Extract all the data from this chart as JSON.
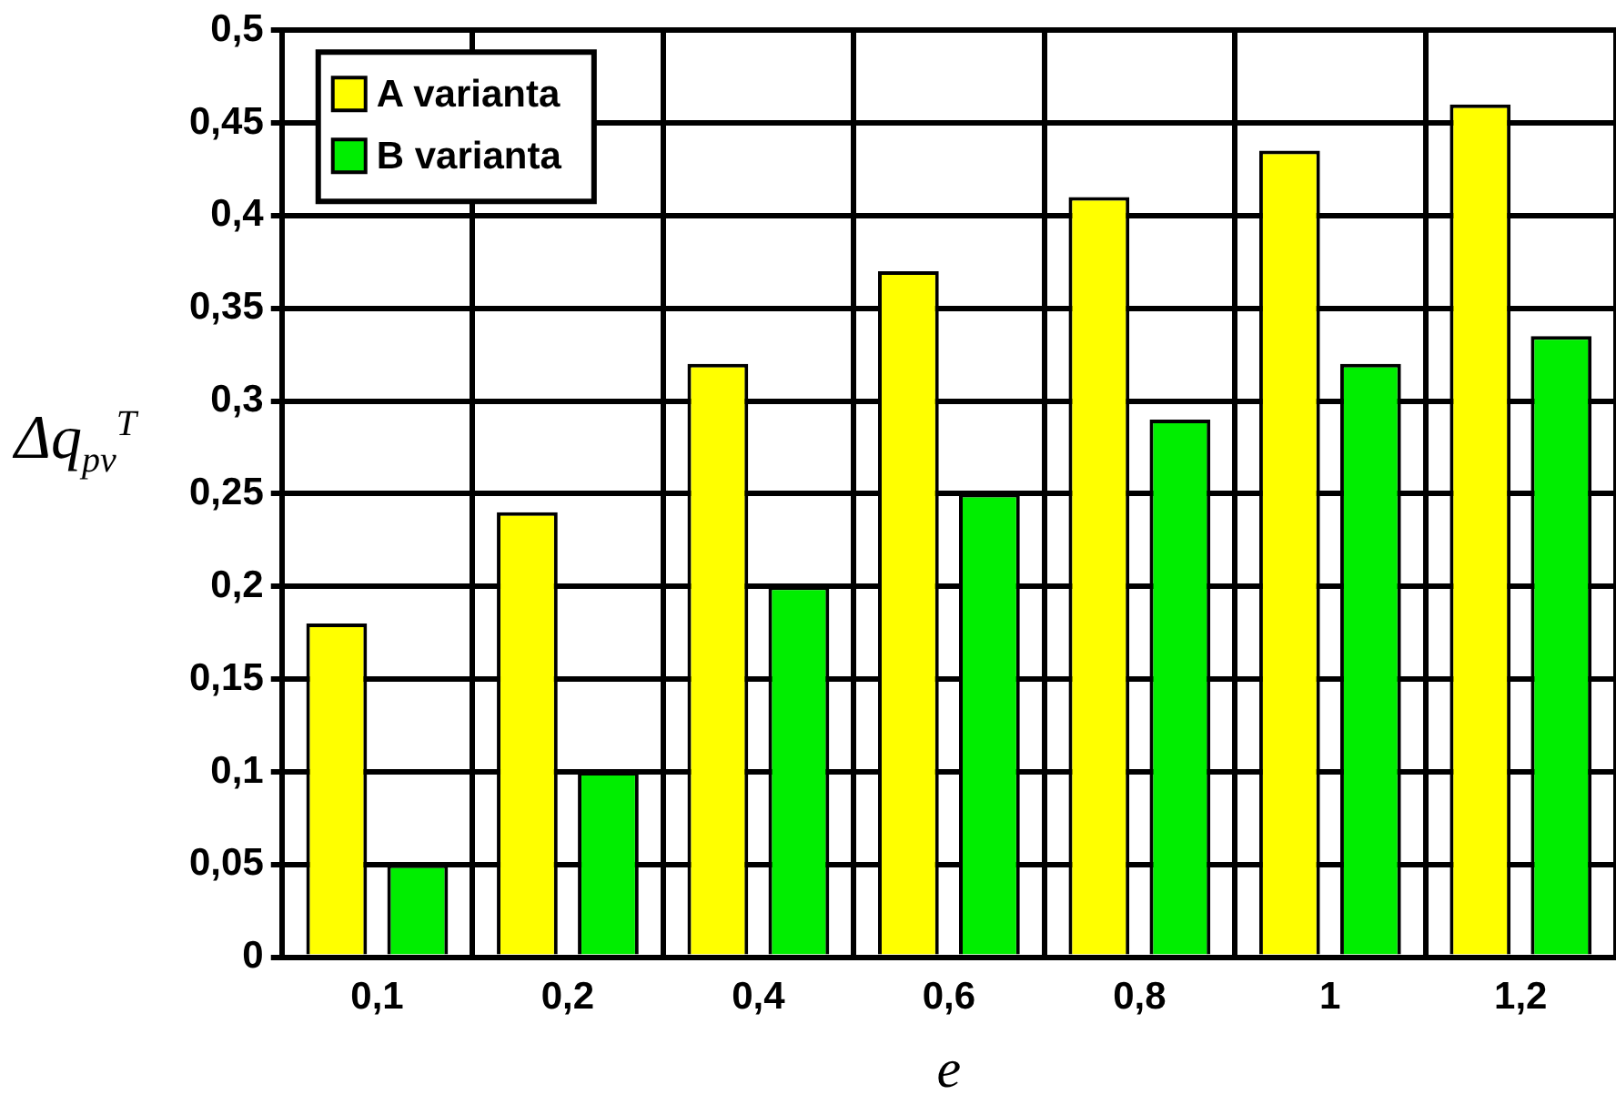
{
  "chart_data": {
    "type": "bar",
    "xlabel": "e",
    "ylabel": "Δq$_{pv}$$^{T}$",
    "categories": [
      "0,1",
      "0,2",
      "0,4",
      "0,6",
      "0,8",
      "1",
      "1,2"
    ],
    "series": [
      {
        "name": "A varianta",
        "color": "#ffff00",
        "values": [
          0.18,
          0.24,
          0.32,
          0.37,
          0.41,
          0.435,
          0.46
        ]
      },
      {
        "name": "B varianta",
        "color": "#00ee00",
        "values": [
          0.05,
          0.1,
          0.2,
          0.25,
          0.29,
          0.32,
          0.335
        ]
      }
    ],
    "ylim": [
      0,
      0.5
    ],
    "yticks": [
      0,
      {
        "value": 0.05,
        "label": "0,05"
      },
      {
        "value": 0.1,
        "label": "0,1"
      },
      {
        "value": 0.15,
        "label": "0,15"
      },
      {
        "value": 0.2,
        "label": "0,2"
      },
      {
        "value": 0.25,
        "label": "0,25"
      },
      {
        "value": 0.3,
        "label": "0,3"
      },
      {
        "value": 0.35,
        "label": "0,35"
      },
      {
        "value": 0.4,
        "label": "0,4"
      },
      {
        "value": 0.45,
        "label": "0,45"
      },
      {
        "value": 0.5,
        "label": "0,5"
      }
    ],
    "grid": true,
    "legend": "top left"
  }
}
